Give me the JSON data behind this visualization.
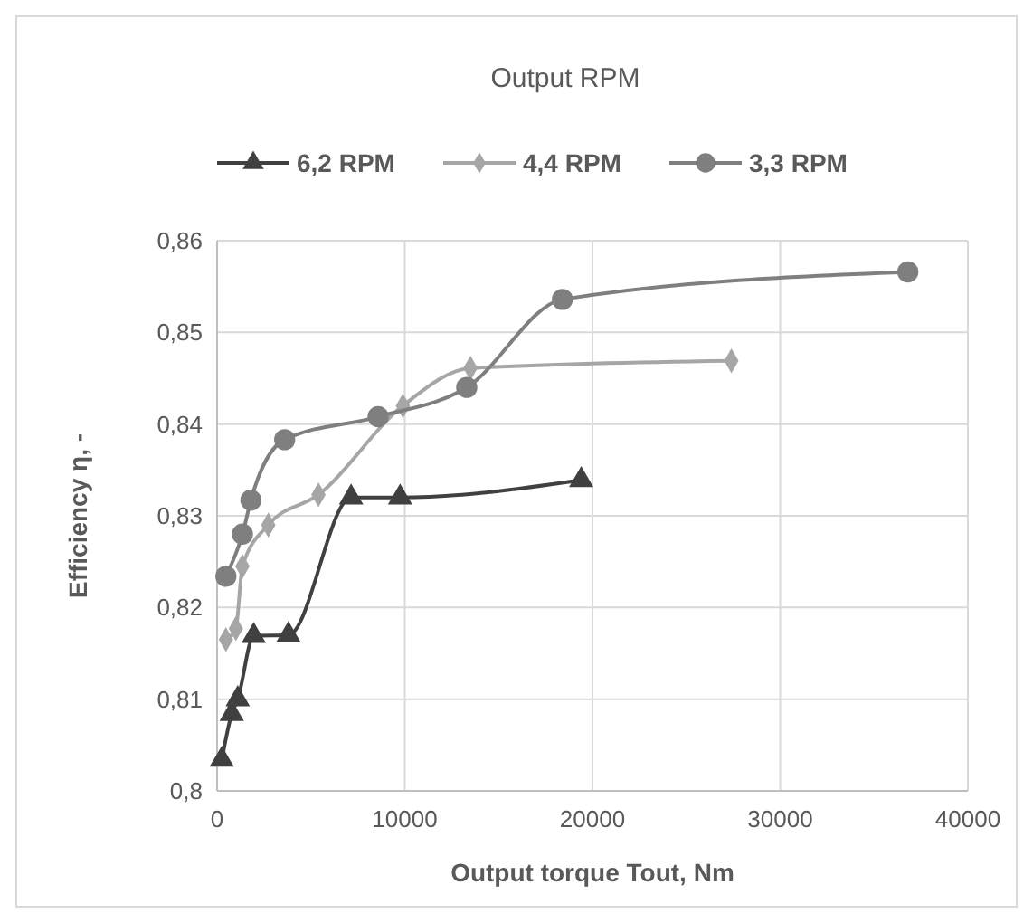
{
  "chart_data": {
    "type": "line",
    "title": "Output RPM",
    "xlabel": "Output torque Tout, Nm",
    "ylabel": "Efficiency η, -",
    "xlim": [
      0,
      40000
    ],
    "xticks": [
      0,
      10000,
      20000,
      30000,
      40000
    ],
    "ylim": [
      0.8,
      0.86
    ],
    "yticks": [
      {
        "value": 0.8,
        "label": "0,8"
      },
      {
        "value": 0.81,
        "label": "0,81"
      },
      {
        "value": 0.82,
        "label": "0,82"
      },
      {
        "value": 0.83,
        "label": "0,83"
      },
      {
        "value": 0.84,
        "label": "0,84"
      },
      {
        "value": 0.85,
        "label": "0,85"
      },
      {
        "value": 0.86,
        "label": "0,86"
      }
    ],
    "grid": true,
    "legend": "top",
    "series": [
      {
        "name": "6,2 RPM",
        "color": "#404040",
        "marker": "triangle",
        "x": [
          250,
          780,
          1100,
          1950,
          3800,
          7140,
          9750,
          19400
        ],
        "values": [
          0.8034,
          0.8084,
          0.81,
          0.8169,
          0.817,
          0.832,
          0.832,
          0.8339
        ]
      },
      {
        "name": "4,4 RPM",
        "color": "#a6a6a6",
        "marker": "diamond",
        "x": [
          470,
          1000,
          1350,
          2730,
          5400,
          8600,
          9900,
          13500,
          27400
        ],
        "values": [
          0.8165,
          0.8177,
          0.8245,
          0.829,
          0.8323,
          null,
          0.842,
          0.8461,
          0.8469
        ]
      },
      {
        "name": "3,3 RPM",
        "color": "#7f7f7f",
        "marker": "circle",
        "x": [
          470,
          1350,
          1800,
          3600,
          8580,
          13300,
          18400,
          36800
        ],
        "values": [
          0.8234,
          0.828,
          0.8317,
          0.8383,
          0.8408,
          0.844,
          0.8536,
          0.8566
        ]
      }
    ]
  }
}
